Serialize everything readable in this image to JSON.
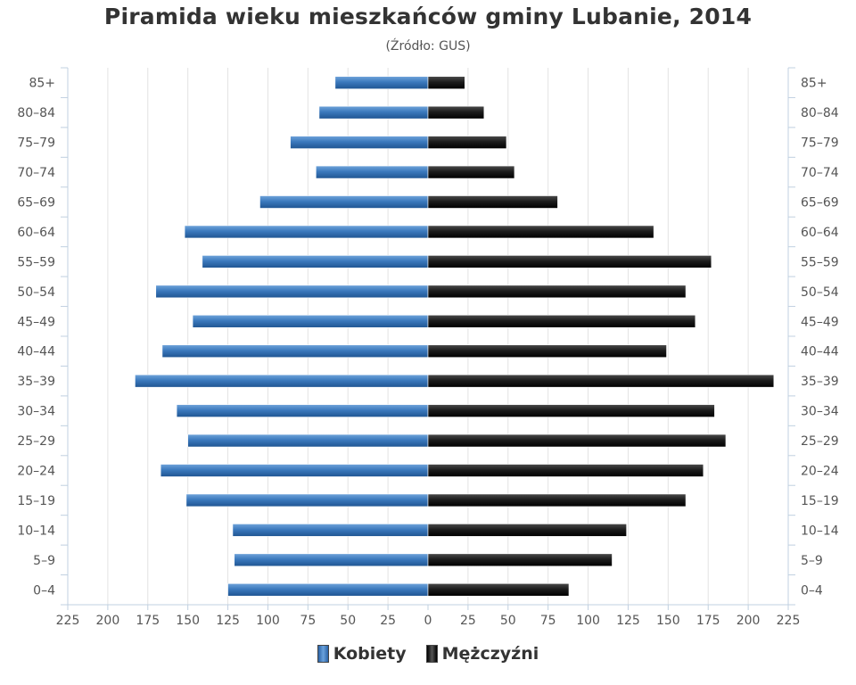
{
  "chart_data": {
    "type": "bar",
    "orientation": "horizontal",
    "title": "Piramida wieku mieszkańców gminy Lubanie, 2014",
    "subtitle": "(Źródło: GUS)",
    "categories": [
      "85+",
      "80–84",
      "75–79",
      "70–74",
      "65–69",
      "60–64",
      "55–59",
      "50–54",
      "45–49",
      "40–44",
      "35–39",
      "30–34",
      "25–29",
      "20–24",
      "15–19",
      "10–14",
      "5–9",
      "0–4"
    ],
    "series": [
      {
        "name": "Kobiety",
        "color": "#3d7bbf",
        "values": [
          58,
          68,
          86,
          70,
          105,
          152,
          141,
          170,
          147,
          166,
          183,
          157,
          150,
          167,
          151,
          122,
          121,
          125
        ]
      },
      {
        "name": "Mężczyźni",
        "color": "#1a1a1a",
        "values": [
          23,
          35,
          49,
          54,
          81,
          141,
          177,
          161,
          167,
          149,
          216,
          179,
          186,
          172,
          161,
          124,
          115,
          88
        ]
      }
    ],
    "x_ticks": [
      "225",
      "200",
      "175",
      "150",
      "125",
      "100",
      "75",
      "50",
      "25",
      "0",
      "25",
      "50",
      "75",
      "100",
      "125",
      "150",
      "175",
      "200",
      "225"
    ],
    "xlim": [
      -225,
      225
    ],
    "grid": true,
    "legend": "bottom-center"
  }
}
